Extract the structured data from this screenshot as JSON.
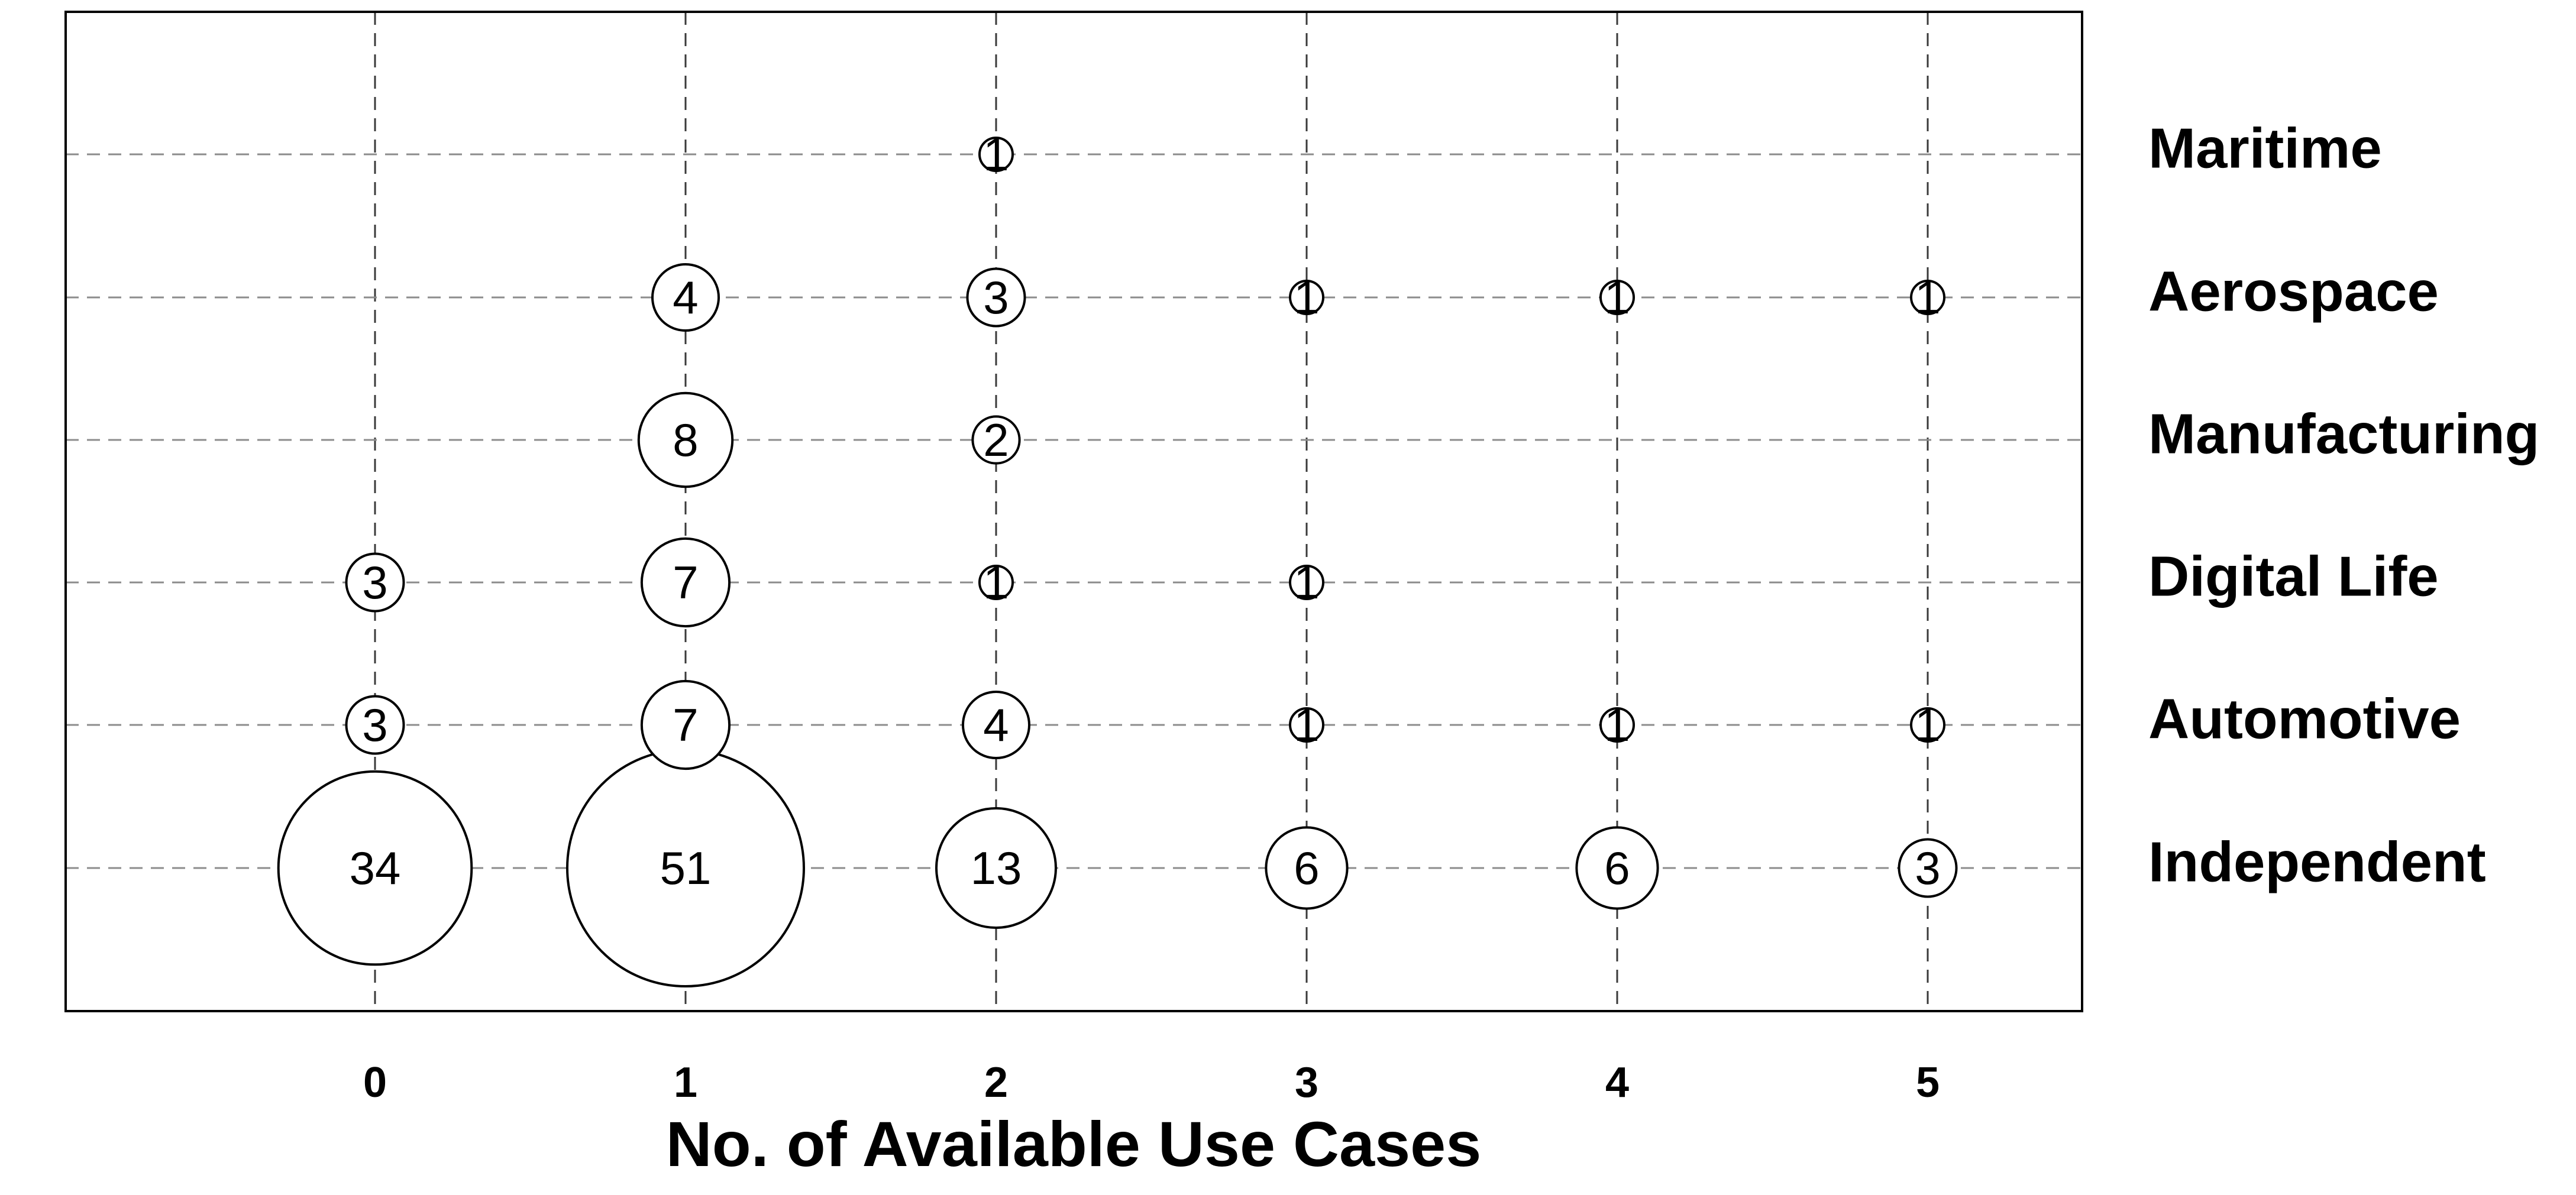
{
  "chart_data": {
    "type": "scatter",
    "xlabel": "No. of Available Use Cases",
    "x_ticks": [
      "0",
      "1",
      "2",
      "3",
      "4",
      "5"
    ],
    "categories": [
      "Independent",
      "Automotive",
      "Digital Life",
      "Manufacturing",
      "Aerospace",
      "Maritime"
    ],
    "points": [
      {
        "category": "Independent",
        "x": 0,
        "value": 34
      },
      {
        "category": "Independent",
        "x": 1,
        "value": 51
      },
      {
        "category": "Independent",
        "x": 2,
        "value": 13
      },
      {
        "category": "Independent",
        "x": 3,
        "value": 6
      },
      {
        "category": "Independent",
        "x": 4,
        "value": 6
      },
      {
        "category": "Independent",
        "x": 5,
        "value": 3
      },
      {
        "category": "Automotive",
        "x": 0,
        "value": 3
      },
      {
        "category": "Automotive",
        "x": 1,
        "value": 7
      },
      {
        "category": "Automotive",
        "x": 2,
        "value": 4
      },
      {
        "category": "Automotive",
        "x": 3,
        "value": 1
      },
      {
        "category": "Automotive",
        "x": 4,
        "value": 1
      },
      {
        "category": "Automotive",
        "x": 5,
        "value": 1
      },
      {
        "category": "Digital Life",
        "x": 0,
        "value": 3
      },
      {
        "category": "Digital Life",
        "x": 1,
        "value": 7
      },
      {
        "category": "Digital Life",
        "x": 2,
        "value": 1
      },
      {
        "category": "Digital Life",
        "x": 3,
        "value": 1
      },
      {
        "category": "Manufacturing",
        "x": 1,
        "value": 8
      },
      {
        "category": "Manufacturing",
        "x": 2,
        "value": 2
      },
      {
        "category": "Aerospace",
        "x": 1,
        "value": 4
      },
      {
        "category": "Aerospace",
        "x": 2,
        "value": 3
      },
      {
        "category": "Aerospace",
        "x": 3,
        "value": 1
      },
      {
        "category": "Aerospace",
        "x": 4,
        "value": 1
      },
      {
        "category": "Aerospace",
        "x": 5,
        "value": 1
      },
      {
        "category": "Maritime",
        "x": 2,
        "value": 1
      }
    ],
    "xlim": [
      -1,
      5.5
    ],
    "grid": true,
    "legend": "none"
  }
}
